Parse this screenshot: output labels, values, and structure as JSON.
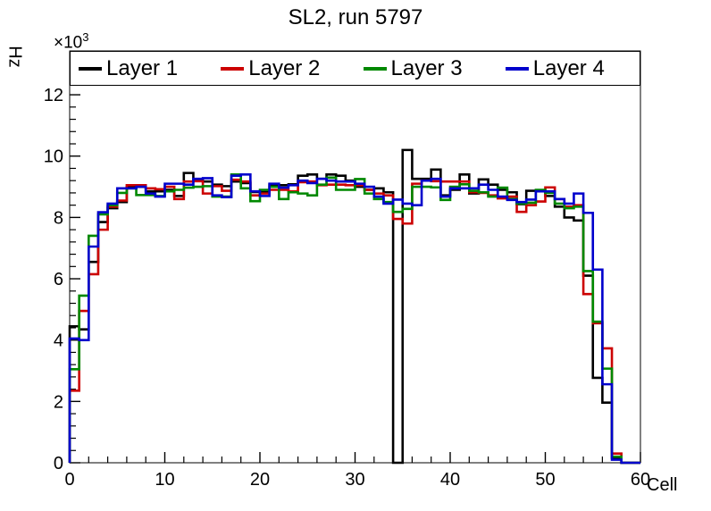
{
  "title": "SL2, run 5797",
  "axes": {
    "y_title": "Hz",
    "x_title": "Cell",
    "y_power_base": "×10",
    "y_power_exp": "3"
  },
  "legend": {
    "entries": [
      {
        "label": "Layer 1",
        "color": "#000000"
      },
      {
        "label": "Layer 2",
        "color": "#cc0000"
      },
      {
        "label": "Layer 3",
        "color": "#008800"
      },
      {
        "label": "Layer 4",
        "color": "#0000cc"
      }
    ]
  },
  "chart_data": {
    "type": "line",
    "style": "step-histogram",
    "title": "SL2, run 5797",
    "xlabel": "Cell",
    "ylabel": "Hz",
    "y_unit_multiplier": 1000,
    "xlim": [
      0,
      60
    ],
    "ylim": [
      0,
      13.43
    ],
    "x_bin_start": 0,
    "x_bin_width": 1,
    "n_bins": 60,
    "x_ticks": [
      0,
      10,
      20,
      30,
      40,
      50,
      60
    ],
    "x_minor_step": 2,
    "y_ticks": [
      0,
      2,
      4,
      6,
      8,
      10,
      12
    ],
    "y_minor_step": 0.4,
    "grid": false,
    "legend_position": "top-band",
    "series": [
      {
        "name": "Layer 1",
        "color": "#000000",
        "values": [
          4.45,
          4.35,
          6.55,
          7.85,
          8.3,
          8.5,
          9.0,
          9.0,
          8.85,
          8.85,
          8.9,
          8.7,
          9.45,
          9.2,
          9.17,
          9.07,
          9.02,
          9.17,
          9.12,
          8.83,
          8.83,
          9.07,
          9.05,
          9.08,
          9.36,
          9.4,
          9.26,
          9.4,
          9.36,
          9.2,
          9.0,
          8.9,
          8.95,
          8.82,
          0.0,
          10.2,
          9.26,
          9.26,
          9.56,
          8.72,
          8.9,
          9.4,
          8.78,
          9.24,
          9.07,
          8.9,
          8.82,
          8.43,
          8.87,
          8.85,
          8.7,
          8.35,
          8.0,
          7.9,
          6.1,
          2.77,
          1.96,
          0.15,
          0.0,
          0.0
        ]
      },
      {
        "name": "Layer 2",
        "color": "#cc0000",
        "values": [
          2.35,
          4.95,
          6.15,
          7.6,
          8.35,
          8.55,
          9.05,
          9.05,
          8.95,
          8.92,
          9.0,
          8.6,
          9.17,
          9.18,
          8.78,
          9.02,
          8.87,
          9.23,
          9.17,
          8.72,
          8.78,
          8.9,
          8.9,
          8.85,
          9.15,
          9.17,
          9.05,
          9.07,
          9.07,
          9.05,
          9.05,
          8.9,
          8.78,
          8.72,
          7.95,
          7.8,
          9.1,
          9.2,
          9.18,
          9.17,
          9.17,
          9.17,
          8.82,
          8.8,
          8.72,
          8.62,
          8.68,
          8.18,
          8.4,
          8.52,
          8.98,
          8.6,
          8.35,
          8.4,
          5.5,
          4.55,
          3.73,
          0.3,
          0.0,
          0.0
        ]
      },
      {
        "name": "Layer 3",
        "color": "#008800",
        "values": [
          3.05,
          5.45,
          7.4,
          8.1,
          8.4,
          8.8,
          8.95,
          8.73,
          8.73,
          8.7,
          8.85,
          8.9,
          8.97,
          9.0,
          9.02,
          8.68,
          8.68,
          9.4,
          8.95,
          8.53,
          8.9,
          9.0,
          8.6,
          8.82,
          8.78,
          8.72,
          9.07,
          9.3,
          8.9,
          8.9,
          9.25,
          8.78,
          8.6,
          8.5,
          8.18,
          8.28,
          9.0,
          9.0,
          8.98,
          8.57,
          9.0,
          9.08,
          8.87,
          8.82,
          8.68,
          8.97,
          8.6,
          8.45,
          8.48,
          8.9,
          8.8,
          8.45,
          8.3,
          8.35,
          6.25,
          4.6,
          3.07,
          0.2,
          0.0,
          0.0
        ]
      },
      {
        "name": "Layer 4",
        "color": "#0000cc",
        "values": [
          4.05,
          4.0,
          7.05,
          8.17,
          8.45,
          8.95,
          8.95,
          9.0,
          8.78,
          8.68,
          9.1,
          9.1,
          9.07,
          9.26,
          9.28,
          8.72,
          8.66,
          9.36,
          9.4,
          8.85,
          8.7,
          9.1,
          8.97,
          9.05,
          9.2,
          9.12,
          9.26,
          9.2,
          9.17,
          9.17,
          9.1,
          9.0,
          8.68,
          8.45,
          8.58,
          8.45,
          8.4,
          9.2,
          9.26,
          8.68,
          8.95,
          8.95,
          8.95,
          9.07,
          8.9,
          8.68,
          8.57,
          8.5,
          8.58,
          8.85,
          8.85,
          8.6,
          8.45,
          8.78,
          8.15,
          6.3,
          2.56,
          0.1,
          0.0,
          0.0
        ]
      }
    ]
  }
}
